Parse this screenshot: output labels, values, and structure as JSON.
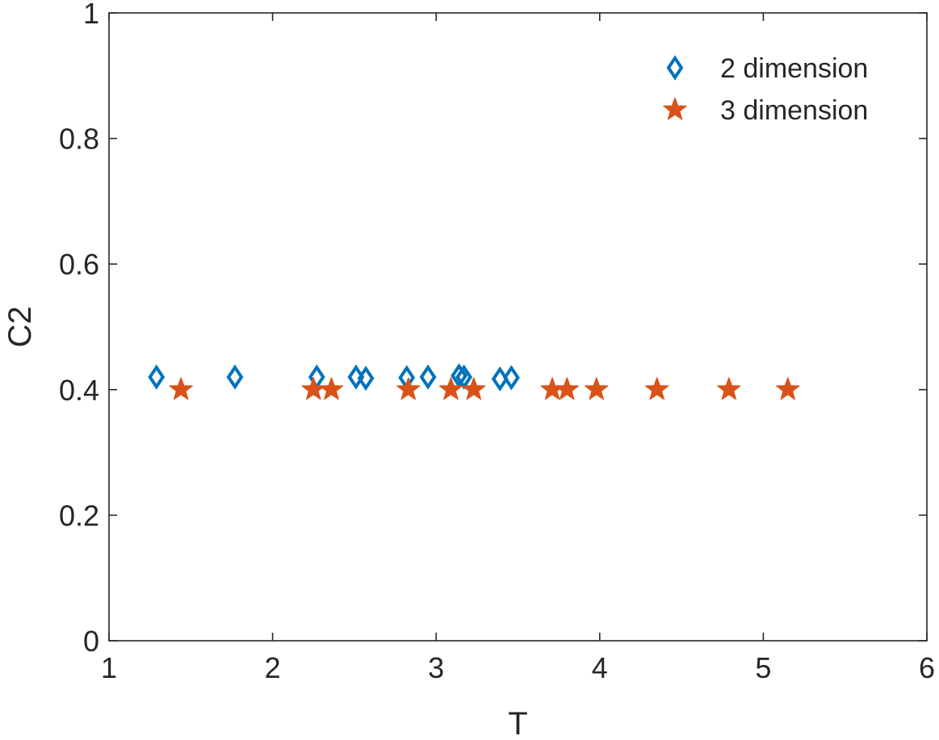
{
  "chart_data": {
    "type": "scatter",
    "title": "",
    "xlabel": "T",
    "ylabel": "C2",
    "xlim": [
      1,
      6
    ],
    "ylim": [
      0,
      1
    ],
    "xticks": [
      1,
      2,
      3,
      4,
      5,
      6
    ],
    "yticks": [
      0,
      0.2,
      0.4,
      0.6,
      0.8,
      1
    ],
    "xtick_labels": [
      "1",
      "2",
      "3",
      "4",
      "5",
      "6"
    ],
    "ytick_labels": [
      "0",
      "0.2",
      "0.4",
      "0.6",
      "0.8",
      "1"
    ],
    "grid": false,
    "legend_position": "top-right",
    "series": [
      {
        "name": "2 dimension",
        "marker": "diamond",
        "color": "#0072BD",
        "x": [
          1.29,
          1.77,
          2.27,
          2.51,
          2.57,
          2.82,
          2.95,
          3.14,
          3.17,
          3.39,
          3.46
        ],
        "y": [
          0.42,
          0.42,
          0.42,
          0.42,
          0.418,
          0.419,
          0.42,
          0.422,
          0.42,
          0.417,
          0.419
        ]
      },
      {
        "name": "3 dimension",
        "marker": "star",
        "color": "#D95319",
        "x": [
          1.44,
          2.25,
          2.36,
          2.83,
          3.09,
          3.23,
          3.71,
          3.8,
          3.98,
          4.35,
          4.79,
          5.15
        ],
        "y": [
          0.4,
          0.4,
          0.4,
          0.4,
          0.4,
          0.4,
          0.4,
          0.4,
          0.4,
          0.4,
          0.4,
          0.4
        ]
      }
    ]
  }
}
